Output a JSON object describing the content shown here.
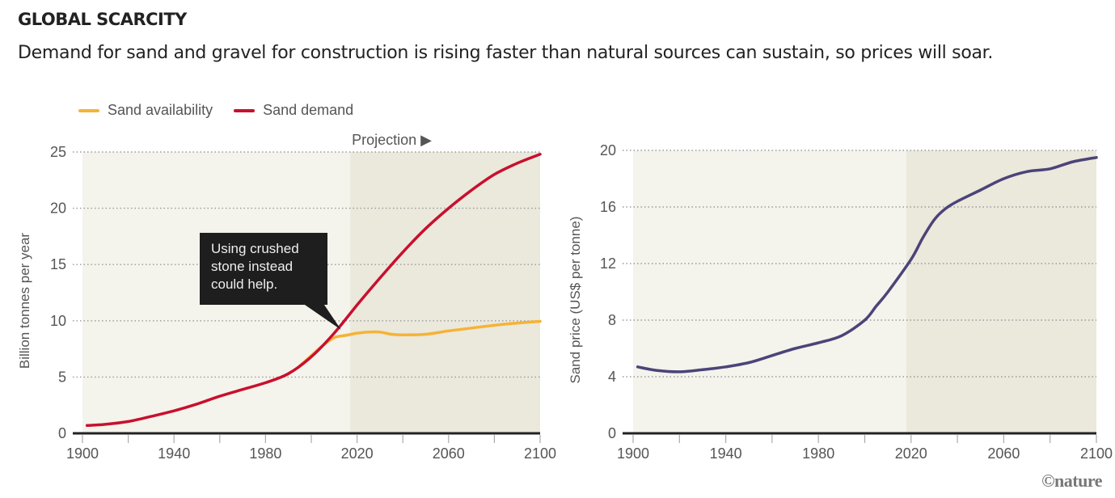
{
  "header": {
    "title": "GLOBAL SCARCITY",
    "subtitle": "Demand for sand and gravel for construction is rising faster than natural sources can sustain, so prices will soar."
  },
  "legend": [
    {
      "label": "Sand availability",
      "color": "#f5b335"
    },
    {
      "label": "Sand demand",
      "color": "#c8102e"
    }
  ],
  "credit": "©nature",
  "colors": {
    "historic_bg": "#f4f3ec",
    "projection_bg": "#ebe8dc",
    "axis": "#222222",
    "grid": "#999999",
    "price_line": "#4b4479",
    "annotation_bg": "#1e1e1e"
  },
  "chart_data": [
    {
      "type": "line",
      "title": "",
      "xlabel": "",
      "ylabel": "Billion tonnes per year",
      "xlim": [
        1900,
        2100
      ],
      "ylim": [
        0,
        25
      ],
      "x_ticks": [
        1900,
        1940,
        1980,
        2020,
        2060,
        2100
      ],
      "x_minor_ticks": [
        1900,
        1920,
        1940,
        1960,
        1980,
        2000,
        2020,
        2040,
        2060,
        2080,
        2100
      ],
      "y_ticks": [
        0,
        5,
        10,
        15,
        20,
        25
      ],
      "grid": "horizontal-dotted",
      "projection_start": 2017,
      "projection_label": "Projection ▶",
      "annotation": {
        "lines": [
          "Using crushed",
          "stone instead",
          "could help."
        ],
        "points_to": [
          2013,
          9.2
        ]
      },
      "series": [
        {
          "name": "Sand demand",
          "color": "#c8102e",
          "x": [
            1902,
            1910,
            1920,
            1930,
            1940,
            1950,
            1960,
            1970,
            1980,
            1990,
            2000,
            2010,
            2020,
            2030,
            2040,
            2050,
            2060,
            2070,
            2080,
            2090,
            2100
          ],
          "y": [
            0.7,
            0.8,
            1.05,
            1.5,
            2.0,
            2.6,
            3.3,
            3.9,
            4.5,
            5.3,
            6.8,
            8.9,
            11.4,
            13.8,
            16.1,
            18.2,
            20.0,
            21.6,
            23.0,
            24.0,
            24.8
          ]
        },
        {
          "name": "Sand availability",
          "color": "#f5b335",
          "x": [
            1995,
            2000,
            2005,
            2010,
            2015,
            2020,
            2025,
            2030,
            2035,
            2040,
            2050,
            2060,
            2070,
            2080,
            2090,
            2100
          ],
          "y": [
            6.0,
            6.9,
            7.8,
            8.5,
            8.7,
            8.9,
            9.0,
            9.0,
            8.8,
            8.75,
            8.8,
            9.1,
            9.35,
            9.6,
            9.8,
            9.95
          ]
        }
      ]
    },
    {
      "type": "line",
      "title": "",
      "xlabel": "",
      "ylabel": "Sand price (US$ per tonne)",
      "xlim": [
        1900,
        2100
      ],
      "ylim": [
        0,
        20
      ],
      "x_ticks": [
        1900,
        1940,
        1980,
        2020,
        2060,
        2100
      ],
      "x_minor_ticks": [
        1900,
        1920,
        1940,
        1960,
        1980,
        2000,
        2020,
        2040,
        2060,
        2080,
        2100
      ],
      "y_ticks": [
        0,
        4,
        8,
        12,
        16,
        20
      ],
      "grid": "horizontal-dotted",
      "projection_start": 2018,
      "series": [
        {
          "name": "Sand price",
          "color": "#4b4479",
          "x": [
            1902,
            1910,
            1920,
            1930,
            1940,
            1950,
            1960,
            1970,
            1980,
            1990,
            2000,
            2005,
            2010,
            2020,
            2025,
            2030,
            2035,
            2040,
            2050,
            2060,
            2070,
            2080,
            2090,
            2100
          ],
          "y": [
            4.7,
            4.45,
            4.35,
            4.5,
            4.7,
            5.0,
            5.5,
            6.0,
            6.4,
            6.9,
            8.0,
            9.0,
            10.0,
            12.3,
            13.8,
            15.1,
            15.9,
            16.4,
            17.2,
            18.0,
            18.5,
            18.7,
            19.2,
            19.5
          ]
        }
      ]
    }
  ]
}
